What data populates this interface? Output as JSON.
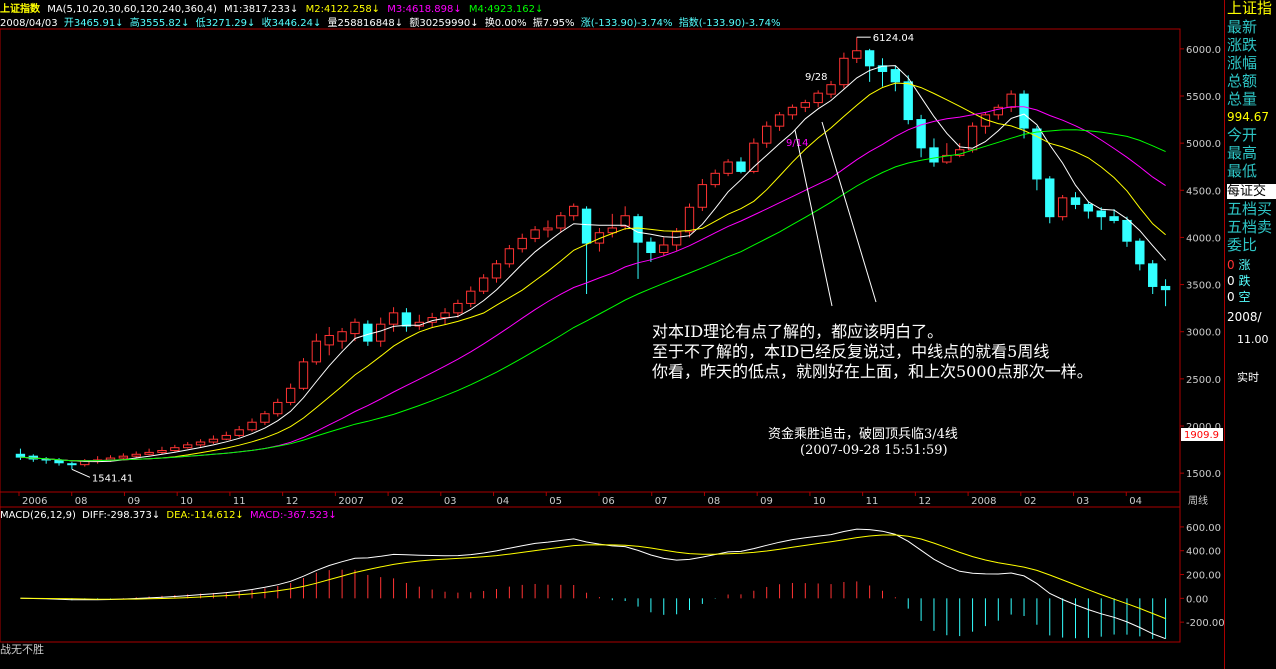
{
  "header": {
    "title": "上证指数",
    "ma_label": "MA(5,10,20,30,60,120,240,360,4)",
    "m1": "M1:3817.233↓",
    "m2": "M2:4122.258↓",
    "m3": "M3:4618.898↓",
    "m4": "M4:4923.162↓"
  },
  "info": {
    "date": "2008/04/03",
    "open": "开3465.91↓",
    "high": "高3555.82↓",
    "low": "低3271.29↓",
    "close": "收3446.24↓",
    "volume": "量258816848↓",
    "amount": "额30259990↓",
    "turnover": "换0.00%",
    "amplitude": "振7.95%",
    "change": "涨(-133.90)-3.74%",
    "index_change": "指数(-133.90)-3.74%"
  },
  "right_panel": {
    "title": "上证指",
    "labels": [
      "最新",
      "涨跌",
      "涨幅",
      "总额",
      "总量"
    ],
    "total_volume": "994.67",
    "labels2": [
      "今开",
      "最高",
      "最低"
    ],
    "exchange": "每证交",
    "tabs": [
      "五档买",
      "五档卖",
      "委比"
    ],
    "up_label": "涨",
    "down_label": "跌",
    "flat_label": "空",
    "zero": "0",
    "date": "2008/",
    "time": "11.00",
    "realtime": "实时"
  },
  "chart_data": [
    {
      "type": "candlestick",
      "title": "上证指数 周线",
      "x_labels": [
        "2006",
        "08",
        "09",
        "10",
        "11",
        "12",
        "2007",
        "02",
        "03",
        "04",
        "05",
        "06",
        "07",
        "08",
        "09",
        "10",
        "11",
        "12",
        "2008",
        "02",
        "03",
        "04"
      ],
      "period_label": "周线",
      "yticks": [
        1500,
        2000,
        2500,
        3000,
        3500,
        4000,
        4500,
        5000,
        5500,
        6000
      ],
      "ylim": [
        1300,
        6200
      ],
      "high_label": "6124.04",
      "low_label": "1541.41",
      "current_price": "1909.9",
      "date_marks": [
        "9/28",
        "9/14"
      ],
      "candles": [
        [
          1700,
          1670,
          1760,
          1640
        ],
        [
          1680,
          1650,
          1700,
          1620
        ],
        [
          1650,
          1640,
          1670,
          1600
        ],
        [
          1640,
          1610,
          1660,
          1580
        ],
        [
          1600,
          1590,
          1620,
          1541
        ],
        [
          1590,
          1630,
          1650,
          1570
        ],
        [
          1630,
          1640,
          1680,
          1600
        ],
        [
          1640,
          1660,
          1690,
          1620
        ],
        [
          1660,
          1680,
          1710,
          1640
        ],
        [
          1680,
          1700,
          1730,
          1660
        ],
        [
          1700,
          1720,
          1760,
          1690
        ],
        [
          1720,
          1740,
          1780,
          1700
        ],
        [
          1740,
          1770,
          1800,
          1730
        ],
        [
          1770,
          1800,
          1830,
          1760
        ],
        [
          1800,
          1830,
          1860,
          1780
        ],
        [
          1830,
          1860,
          1900,
          1810
        ],
        [
          1860,
          1900,
          1940,
          1850
        ],
        [
          1900,
          1960,
          2000,
          1880
        ],
        [
          1960,
          2040,
          2080,
          1940
        ],
        [
          2040,
          2130,
          2160,
          2010
        ],
        [
          2130,
          2250,
          2290,
          2100
        ],
        [
          2250,
          2400,
          2450,
          2220
        ],
        [
          2400,
          2680,
          2720,
          2380
        ],
        [
          2680,
          2900,
          2980,
          2650
        ],
        [
          2860,
          2960,
          3050,
          2750
        ],
        [
          2900,
          3000,
          3040,
          2820
        ],
        [
          2980,
          3100,
          3140,
          2900
        ],
        [
          3080,
          2900,
          3120,
          2850
        ],
        [
          2900,
          3080,
          3150,
          2840
        ],
        [
          3080,
          3200,
          3260,
          3000
        ],
        [
          3200,
          3060,
          3250,
          3000
        ],
        [
          3060,
          3100,
          3180,
          3020
        ],
        [
          3100,
          3150,
          3200,
          3050
        ],
        [
          3150,
          3200,
          3250,
          3080
        ],
        [
          3200,
          3300,
          3340,
          3150
        ],
        [
          3300,
          3430,
          3480,
          3260
        ],
        [
          3430,
          3570,
          3610,
          3400
        ],
        [
          3570,
          3720,
          3760,
          3520
        ],
        [
          3720,
          3880,
          3920,
          3680
        ],
        [
          3880,
          3990,
          4040,
          3840
        ],
        [
          3990,
          4080,
          4120,
          3950
        ],
        [
          4080,
          4100,
          4180,
          4000
        ],
        [
          4100,
          4230,
          4270,
          4050
        ],
        [
          4230,
          4330,
          4360,
          4180
        ],
        [
          4300,
          3940,
          4330,
          3400
        ],
        [
          3940,
          4050,
          4100,
          3850
        ],
        [
          4050,
          4100,
          4250,
          4000
        ],
        [
          4120,
          4230,
          4330,
          4080
        ],
        [
          4220,
          3950,
          4250,
          3560
        ],
        [
          3950,
          3840,
          4000,
          3740
        ],
        [
          3840,
          3920,
          4000,
          3800
        ],
        [
          3920,
          4060,
          4100,
          3860
        ],
        [
          4060,
          4320,
          4360,
          4000
        ],
        [
          4320,
          4560,
          4620,
          4280
        ],
        [
          4560,
          4680,
          4720,
          4530
        ],
        [
          4680,
          4800,
          4830,
          4650
        ],
        [
          4800,
          4700,
          4850,
          4680
        ],
        [
          4700,
          5000,
          5050,
          4680
        ],
        [
          5000,
          5180,
          5230,
          4950
        ],
        [
          5180,
          5300,
          5330,
          5130
        ],
        [
          5300,
          5380,
          5410,
          5250
        ],
        [
          5380,
          5430,
          5460,
          5330
        ],
        [
          5430,
          5530,
          5560,
          5380
        ],
        [
          5520,
          5620,
          5660,
          5480
        ],
        [
          5620,
          5900,
          5960,
          5580
        ],
        [
          5900,
          5980,
          6124,
          5850
        ],
        [
          5980,
          5820,
          6000,
          5650
        ],
        [
          5820,
          5760,
          5900,
          5600
        ],
        [
          5780,
          5650,
          5820,
          5550
        ],
        [
          5650,
          5250,
          5720,
          5200
        ],
        [
          5250,
          4950,
          5300,
          4850
        ],
        [
          4950,
          4800,
          5050,
          4750
        ],
        [
          4800,
          4870,
          5000,
          4780
        ],
        [
          4870,
          4930,
          5000,
          4850
        ],
        [
          4930,
          5180,
          5220,
          4900
        ],
        [
          5180,
          5300,
          5330,
          5100
        ],
        [
          5300,
          5380,
          5410,
          5250
        ],
        [
          5380,
          5520,
          5560,
          5330
        ],
        [
          5520,
          5160,
          5560,
          5050
        ],
        [
          5150,
          4620,
          5180,
          4500
        ],
        [
          4620,
          4220,
          4650,
          4150
        ],
        [
          4220,
          4420,
          4450,
          4180
        ],
        [
          4420,
          4350,
          4480,
          4300
        ],
        [
          4350,
          4280,
          4380,
          4200
        ],
        [
          4280,
          4220,
          4320,
          4080
        ],
        [
          4220,
          4180,
          4300,
          4150
        ],
        [
          4180,
          3960,
          4220,
          3900
        ],
        [
          3960,
          3720,
          3990,
          3650
        ],
        [
          3720,
          3480,
          3760,
          3400
        ],
        [
          3480,
          3446,
          3556,
          3271
        ]
      ],
      "ma": [
        {
          "name": "M1",
          "color": "#ffffff"
        },
        {
          "name": "M2",
          "color": "#ffff00"
        },
        {
          "name": "M3",
          "color": "#ff00ff"
        },
        {
          "name": "M4",
          "color": "#00ff00"
        }
      ]
    },
    {
      "type": "macd",
      "title": "MACD(26,12,9)",
      "yticks": [
        -200,
        0,
        200,
        400,
        600
      ],
      "ylim": [
        -350,
        700
      ],
      "diff_label": "DIFF:-298.373↓",
      "dea_label": "DEA:-114.612↓",
      "macd_label": "MACD:-367.523↓"
    }
  ],
  "annotations": {
    "line1": "对本ID理论有点了解的，都应该明白了。",
    "line2": "至于不了解的，本ID已经反复说过，中线点的就看5周线",
    "line3": "你看，昨天的低点，就刚好在上面，和上次5000点那次一样。",
    "caption1": "资金乘胜追击，破圆顶兵临3/4线",
    "caption2": "(2007-09-28 15:51:59)"
  },
  "footer": {
    "text": "战无不胜"
  },
  "colors": {
    "up": "#ff3333",
    "down": "#33ffff",
    "axis": "#aa0000"
  }
}
